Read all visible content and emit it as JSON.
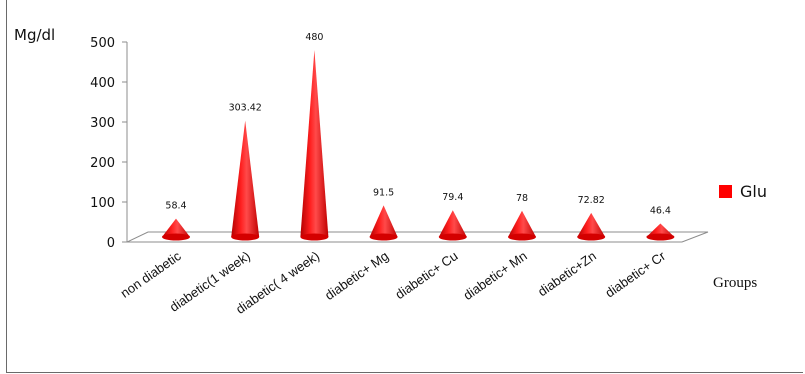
{
  "chart_data": {
    "type": "bar",
    "style": "3d-cone",
    "ylabel": "Mg/dl",
    "xlabel": "Groups",
    "ylim": [
      0,
      500
    ],
    "yticks": [
      0,
      100,
      200,
      300,
      400,
      500
    ],
    "categories": [
      "non diabetic",
      "diabetic(1 week)",
      "diabetic( 4 week)",
      "diabetic+ Mg",
      "diabetic+ Cu",
      "diabetic+ Mn",
      "diabetic+Zn",
      "diabetic+ Cr"
    ],
    "series": [
      {
        "name": "Glu",
        "color": "#ff0000",
        "values": [
          58.4,
          303.42,
          480,
          91.5,
          79.4,
          78,
          72.82,
          46.4
        ]
      }
    ],
    "legend_position": "right",
    "grid": false
  }
}
